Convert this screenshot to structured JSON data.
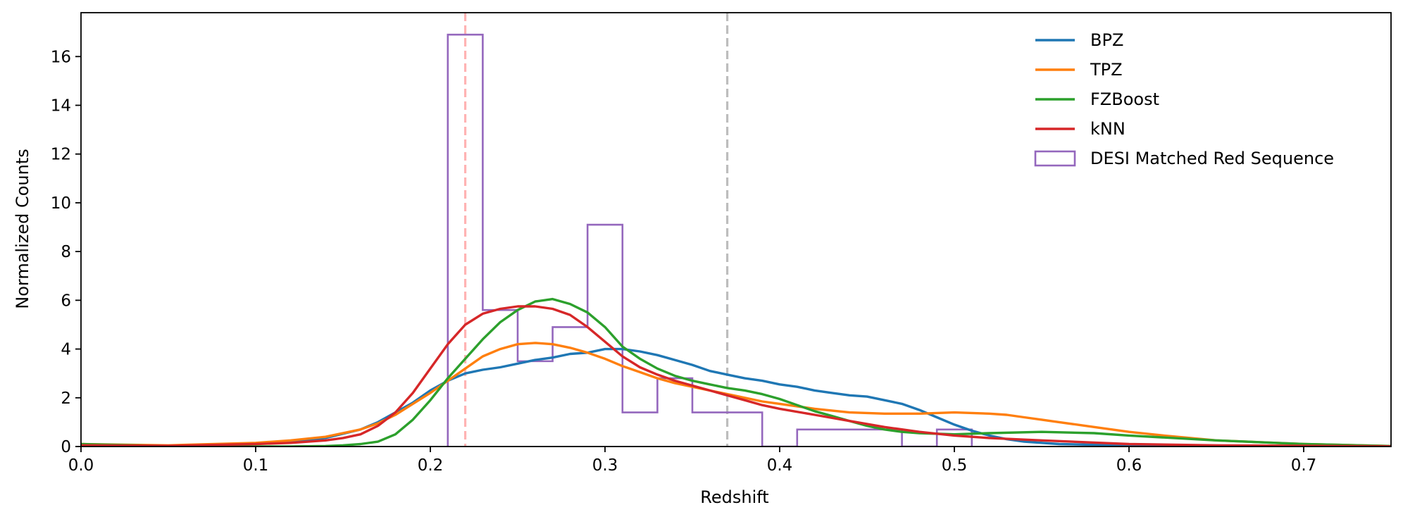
{
  "chart_data": {
    "type": "line",
    "title": "",
    "xlabel": "Redshift",
    "ylabel": "Normalized Counts",
    "xlim": [
      0.0,
      0.75
    ],
    "ylim": [
      0,
      17.8
    ],
    "xticks": [
      0.0,
      0.1,
      0.2,
      0.3,
      0.4,
      0.5,
      0.6,
      0.7
    ],
    "xtick_labels": [
      "0.0",
      "0.1",
      "0.2",
      "0.3",
      "0.4",
      "0.5",
      "0.6",
      "0.7"
    ],
    "yticks": [
      0,
      2,
      4,
      6,
      8,
      10,
      12,
      14,
      16
    ],
    "ytick_labels": [
      "0",
      "2",
      "4",
      "6",
      "8",
      "10",
      "12",
      "14",
      "16"
    ],
    "grid": false,
    "legend_position": "top-right",
    "series": [
      {
        "name": "BPZ",
        "color": "#1f77b4",
        "x": [
          0.0,
          0.05,
          0.1,
          0.12,
          0.14,
          0.16,
          0.17,
          0.18,
          0.19,
          0.2,
          0.21,
          0.22,
          0.23,
          0.24,
          0.25,
          0.26,
          0.27,
          0.28,
          0.29,
          0.3,
          0.31,
          0.32,
          0.33,
          0.34,
          0.35,
          0.36,
          0.37,
          0.38,
          0.39,
          0.4,
          0.41,
          0.42,
          0.43,
          0.44,
          0.45,
          0.46,
          0.47,
          0.48,
          0.49,
          0.5,
          0.51,
          0.52,
          0.53,
          0.54,
          0.55,
          0.56,
          0.58,
          0.6,
          0.65,
          0.7,
          0.75
        ],
        "y": [
          0.05,
          0.03,
          0.12,
          0.2,
          0.35,
          0.7,
          1.0,
          1.4,
          1.8,
          2.3,
          2.7,
          3.0,
          3.15,
          3.25,
          3.4,
          3.55,
          3.65,
          3.8,
          3.85,
          4.0,
          4.0,
          3.9,
          3.75,
          3.55,
          3.35,
          3.1,
          2.95,
          2.8,
          2.7,
          2.55,
          2.45,
          2.3,
          2.2,
          2.1,
          2.05,
          1.9,
          1.75,
          1.5,
          1.2,
          0.9,
          0.65,
          0.45,
          0.3,
          0.2,
          0.15,
          0.1,
          0.07,
          0.05,
          0.03,
          0.02,
          0.01
        ]
      },
      {
        "name": "TPZ",
        "color": "#ff7f0e",
        "x": [
          0.0,
          0.05,
          0.1,
          0.12,
          0.14,
          0.16,
          0.17,
          0.18,
          0.19,
          0.2,
          0.21,
          0.22,
          0.23,
          0.24,
          0.25,
          0.26,
          0.27,
          0.28,
          0.29,
          0.3,
          0.31,
          0.32,
          0.33,
          0.34,
          0.35,
          0.36,
          0.37,
          0.38,
          0.39,
          0.4,
          0.42,
          0.44,
          0.46,
          0.48,
          0.5,
          0.52,
          0.53,
          0.54,
          0.55,
          0.56,
          0.58,
          0.6,
          0.62,
          0.65,
          0.7,
          0.75
        ],
        "y": [
          0.1,
          0.05,
          0.15,
          0.25,
          0.4,
          0.7,
          0.95,
          1.3,
          1.75,
          2.2,
          2.7,
          3.2,
          3.7,
          4.0,
          4.2,
          4.25,
          4.2,
          4.05,
          3.85,
          3.6,
          3.3,
          3.05,
          2.8,
          2.6,
          2.45,
          2.3,
          2.15,
          2.0,
          1.85,
          1.75,
          1.55,
          1.4,
          1.35,
          1.35,
          1.4,
          1.35,
          1.3,
          1.2,
          1.1,
          1.0,
          0.8,
          0.6,
          0.45,
          0.25,
          0.1,
          0.02
        ]
      },
      {
        "name": "FZBoost",
        "color": "#2ca02c",
        "x": [
          0.0,
          0.05,
          0.1,
          0.12,
          0.14,
          0.15,
          0.16,
          0.17,
          0.18,
          0.19,
          0.2,
          0.21,
          0.22,
          0.23,
          0.24,
          0.25,
          0.26,
          0.27,
          0.28,
          0.29,
          0.3,
          0.31,
          0.32,
          0.33,
          0.34,
          0.35,
          0.36,
          0.37,
          0.38,
          0.39,
          0.4,
          0.41,
          0.42,
          0.43,
          0.44,
          0.45,
          0.46,
          0.47,
          0.48,
          0.5,
          0.52,
          0.55,
          0.58,
          0.6,
          0.65,
          0.7,
          0.75
        ],
        "y": [
          0.1,
          0.02,
          0.0,
          0.0,
          0.02,
          0.05,
          0.1,
          0.2,
          0.5,
          1.1,
          1.9,
          2.8,
          3.6,
          4.4,
          5.1,
          5.6,
          5.95,
          6.05,
          5.85,
          5.5,
          4.9,
          4.1,
          3.6,
          3.2,
          2.9,
          2.7,
          2.55,
          2.4,
          2.3,
          2.15,
          1.95,
          1.7,
          1.45,
          1.25,
          1.05,
          0.85,
          0.7,
          0.6,
          0.55,
          0.5,
          0.55,
          0.6,
          0.55,
          0.45,
          0.25,
          0.1,
          0.02
        ]
      },
      {
        "name": "kNN",
        "color": "#d62728",
        "x": [
          0.0,
          0.05,
          0.1,
          0.12,
          0.14,
          0.15,
          0.16,
          0.17,
          0.18,
          0.19,
          0.2,
          0.21,
          0.22,
          0.23,
          0.24,
          0.25,
          0.26,
          0.27,
          0.28,
          0.29,
          0.3,
          0.31,
          0.32,
          0.33,
          0.34,
          0.35,
          0.36,
          0.37,
          0.38,
          0.39,
          0.4,
          0.42,
          0.44,
          0.46,
          0.48,
          0.5,
          0.52,
          0.55,
          0.6,
          0.65,
          0.75
        ],
        "y": [
          0.05,
          0.03,
          0.1,
          0.15,
          0.25,
          0.35,
          0.5,
          0.85,
          1.4,
          2.2,
          3.2,
          4.2,
          5.0,
          5.45,
          5.65,
          5.75,
          5.75,
          5.65,
          5.4,
          4.9,
          4.3,
          3.7,
          3.25,
          2.95,
          2.7,
          2.5,
          2.3,
          2.1,
          1.9,
          1.7,
          1.55,
          1.3,
          1.05,
          0.8,
          0.6,
          0.45,
          0.35,
          0.25,
          0.1,
          0.05,
          0.01
        ]
      }
    ],
    "histogram": {
      "name": "DESI Matched Red Sequence",
      "color": "#9467bd",
      "bin_edges": [
        0.21,
        0.23,
        0.25,
        0.27,
        0.29,
        0.31,
        0.33,
        0.35,
        0.37,
        0.39,
        0.41,
        0.43,
        0.45,
        0.47,
        0.49,
        0.51
      ],
      "values": [
        16.9,
        5.6,
        3.5,
        4.9,
        9.1,
        1.4,
        2.8,
        1.4,
        1.4,
        0,
        0.7,
        0.7,
        0.7,
        0,
        0.7
      ]
    },
    "vlines": [
      {
        "x": 0.22,
        "color": "#ffb3b3",
        "style": "dashed"
      },
      {
        "x": 0.37,
        "color": "#bdbdbd",
        "style": "dashed"
      }
    ]
  }
}
